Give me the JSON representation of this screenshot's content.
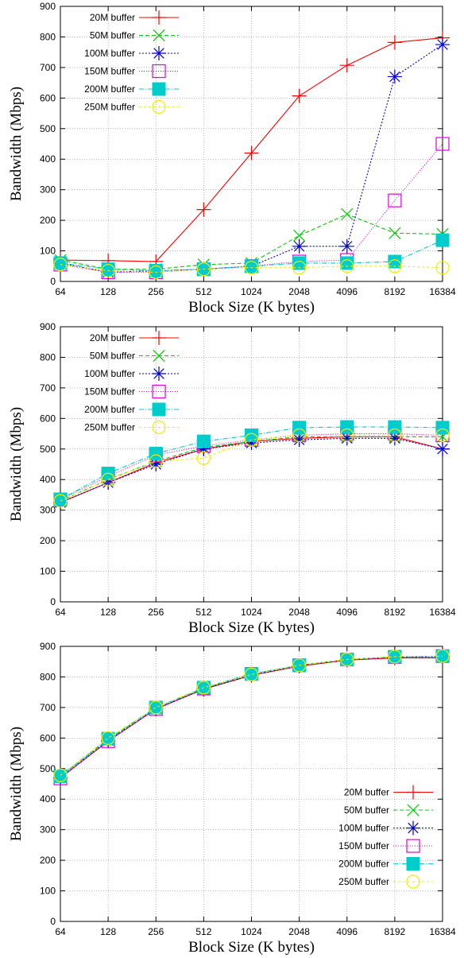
{
  "colors": {
    "20M buffer": "#ff0000",
    "50M buffer": "#00cc00",
    "100M buffer": "#0000cc",
    "150M buffer": "#dd00dd",
    "200M buffer": "#00cccc",
    "250M buffer": "#eeee00"
  },
  "markers": {
    "20M buffer": "plus",
    "50M buffer": "cross",
    "100M buffer": "asterisk",
    "150M buffer": "open-square",
    "200M buffer": "filled-square",
    "250M buffer": "open-circle"
  },
  "chart_data": [
    {
      "type": "line",
      "title": "",
      "xlabel": "Block Size (K bytes)",
      "ylabel": "Bandwidth (Mbps)",
      "categories": [
        "64",
        "128",
        "256",
        "512",
        "1024",
        "2048",
        "4096",
        "8192",
        "16384"
      ],
      "ylim": [
        0,
        900
      ],
      "yticks": [
        0,
        100,
        200,
        300,
        400,
        500,
        600,
        700,
        800,
        900
      ],
      "grid": true,
      "legend_position": "top-left",
      "series": [
        {
          "name": "20M buffer",
          "values": [
            70,
            68,
            65,
            235,
            420,
            607,
            707,
            782,
            797
          ]
        },
        {
          "name": "50M buffer",
          "values": [
            70,
            40,
            40,
            55,
            60,
            150,
            220,
            158,
            155
          ]
        },
        {
          "name": "100M buffer",
          "values": [
            60,
            30,
            35,
            40,
            50,
            115,
            115,
            670,
            775
          ]
        },
        {
          "name": "150M buffer",
          "values": [
            55,
            30,
            30,
            40,
            50,
            65,
            70,
            265,
            450
          ]
        },
        {
          "name": "200M buffer",
          "values": [
            60,
            40,
            35,
            40,
            50,
            60,
            60,
            65,
            135
          ]
        },
        {
          "name": "250M buffer",
          "values": [
            55,
            35,
            30,
            40,
            45,
            45,
            50,
            50,
            45
          ]
        }
      ]
    },
    {
      "type": "line",
      "title": "",
      "xlabel": "Block Size (K bytes)",
      "ylabel": "Bandwidth (Mbps)",
      "categories": [
        "64",
        "128",
        "256",
        "512",
        "1024",
        "2048",
        "4096",
        "8192",
        "16384"
      ],
      "ylim": [
        0,
        900
      ],
      "yticks": [
        0,
        100,
        200,
        300,
        400,
        500,
        600,
        700,
        800,
        900
      ],
      "grid": true,
      "legend_position": "top-left",
      "series": [
        {
          "name": "20M buffer",
          "values": [
            325,
            390,
            455,
            500,
            525,
            535,
            540,
            540,
            500
          ]
        },
        {
          "name": "50M buffer",
          "values": [
            330,
            400,
            460,
            505,
            525,
            540,
            540,
            540,
            540
          ]
        },
        {
          "name": "100M buffer",
          "values": [
            325,
            390,
            450,
            500,
            520,
            530,
            535,
            535,
            500
          ]
        },
        {
          "name": "150M buffer",
          "values": [
            335,
            410,
            480,
            510,
            530,
            545,
            550,
            550,
            545
          ]
        },
        {
          "name": "200M buffer",
          "values": [
            335,
            420,
            485,
            525,
            545,
            570,
            572,
            572,
            570
          ]
        },
        {
          "name": "250M buffer",
          "values": [
            330,
            400,
            460,
            470,
            530,
            545,
            545,
            545,
            545
          ]
        }
      ]
    },
    {
      "type": "line",
      "title": "",
      "xlabel": "Block Size (K bytes)",
      "ylabel": "Bandwidth (Mbps)",
      "categories": [
        "64",
        "128",
        "256",
        "512",
        "1024",
        "2048",
        "4096",
        "8192",
        "16384"
      ],
      "ylim": [
        0,
        900
      ],
      "yticks": [
        0,
        100,
        200,
        300,
        400,
        500,
        600,
        700,
        800,
        900
      ],
      "grid": true,
      "legend_position": "bottom-right",
      "series": [
        {
          "name": "20M buffer",
          "values": [
            470,
            590,
            695,
            760,
            805,
            835,
            855,
            862,
            862
          ]
        },
        {
          "name": "50M buffer",
          "values": [
            475,
            595,
            698,
            762,
            808,
            838,
            857,
            865,
            867
          ]
        },
        {
          "name": "100M buffer",
          "values": [
            470,
            592,
            695,
            760,
            806,
            836,
            856,
            864,
            866
          ]
        },
        {
          "name": "150M buffer",
          "values": [
            468,
            590,
            695,
            762,
            810,
            838,
            857,
            865,
            868
          ]
        },
        {
          "name": "200M buffer",
          "values": [
            475,
            598,
            700,
            765,
            810,
            838,
            857,
            866,
            868
          ]
        },
        {
          "name": "250M buffer",
          "values": [
            478,
            600,
            700,
            765,
            808,
            838,
            857,
            866,
            868
          ]
        }
      ]
    }
  ]
}
